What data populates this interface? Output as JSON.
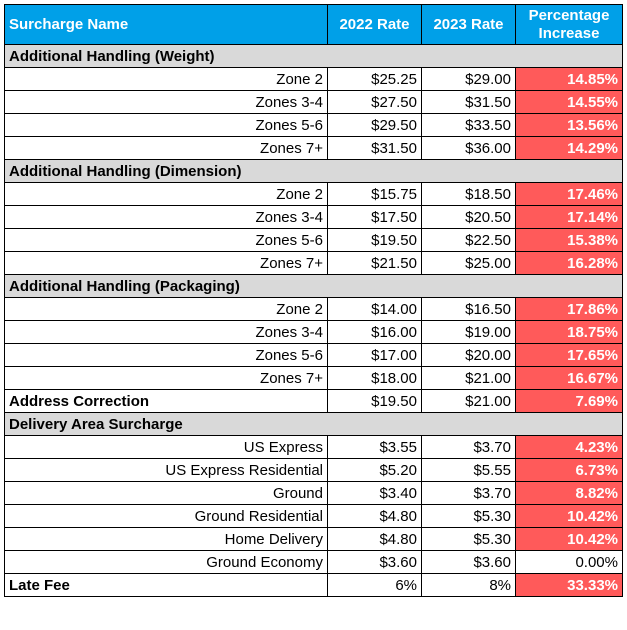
{
  "headers": {
    "name": "Surcharge Name",
    "rate_2022": "2022 Rate",
    "rate_2023": "2023 Rate",
    "pct_line1": "Percentage",
    "pct_line2": "Increase"
  },
  "colors": {
    "header_bg": "#00A0E8",
    "section_bg": "#D9D9D9",
    "highlight_bg": "#FF5A5A"
  },
  "groups": [
    {
      "title": "Additional Handling (Weight)",
      "rows": [
        {
          "label": "Zone 2",
          "r2022": "$25.25",
          "r2023": "$29.00",
          "pct": "14.85%",
          "highlight": true
        },
        {
          "label": "Zones 3-4",
          "r2022": "$27.50",
          "r2023": "$31.50",
          "pct": "14.55%",
          "highlight": true
        },
        {
          "label": "Zones 5-6",
          "r2022": "$29.50",
          "r2023": "$33.50",
          "pct": "13.56%",
          "highlight": true
        },
        {
          "label": "Zones 7+",
          "r2022": "$31.50",
          "r2023": "$36.00",
          "pct": "14.29%",
          "highlight": true
        }
      ]
    },
    {
      "title": "Additional Handling (Dimension)",
      "rows": [
        {
          "label": "Zone 2",
          "r2022": "$15.75",
          "r2023": "$18.50",
          "pct": "17.46%",
          "highlight": true
        },
        {
          "label": "Zones 3-4",
          "r2022": "$17.50",
          "r2023": "$20.50",
          "pct": "17.14%",
          "highlight": true
        },
        {
          "label": "Zones 5-6",
          "r2022": "$19.50",
          "r2023": "$22.50",
          "pct": "15.38%",
          "highlight": true
        },
        {
          "label": "Zones 7+",
          "r2022": "$21.50",
          "r2023": "$25.00",
          "pct": "16.28%",
          "highlight": true
        }
      ]
    },
    {
      "title": "Additional Handling (Packaging)",
      "rows": [
        {
          "label": "Zone 2",
          "r2022": "$14.00",
          "r2023": "$16.50",
          "pct": "17.86%",
          "highlight": true
        },
        {
          "label": "Zones 3-4",
          "r2022": "$16.00",
          "r2023": "$19.00",
          "pct": "18.75%",
          "highlight": true
        },
        {
          "label": "Zones 5-6",
          "r2022": "$17.00",
          "r2023": "$20.00",
          "pct": "17.65%",
          "highlight": true
        },
        {
          "label": "Zones 7+",
          "r2022": "$18.00",
          "r2023": "$21.00",
          "pct": "16.67%",
          "highlight": true
        }
      ]
    }
  ],
  "address_correction": {
    "label": "Address Correction",
    "r2022": "$19.50",
    "r2023": "$21.00",
    "pct": "7.69%"
  },
  "delivery_area": {
    "title": "Delivery Area Surcharge",
    "rows": [
      {
        "label": "US Express",
        "r2022": "$3.55",
        "r2023": "$3.70",
        "pct": "4.23%",
        "highlight": true
      },
      {
        "label": "US Express Residential",
        "r2022": "$5.20",
        "r2023": "$5.55",
        "pct": "6.73%",
        "highlight": true
      },
      {
        "label": "Ground",
        "r2022": "$3.40",
        "r2023": "$3.70",
        "pct": "8.82%",
        "highlight": true
      },
      {
        "label": "Ground Residential",
        "r2022": "$4.80",
        "r2023": "$5.30",
        "pct": "10.42%",
        "highlight": true
      },
      {
        "label": "Home Delivery",
        "r2022": "$4.80",
        "r2023": "$5.30",
        "pct": "10.42%",
        "highlight": true
      },
      {
        "label": "Ground Economy",
        "r2022": "$3.60",
        "r2023": "$3.60",
        "pct": "0.00%",
        "highlight": false
      }
    ]
  },
  "late_fee": {
    "label": "Late Fee",
    "r2022": "6%",
    "r2023": "8%",
    "pct": "33.33%"
  }
}
